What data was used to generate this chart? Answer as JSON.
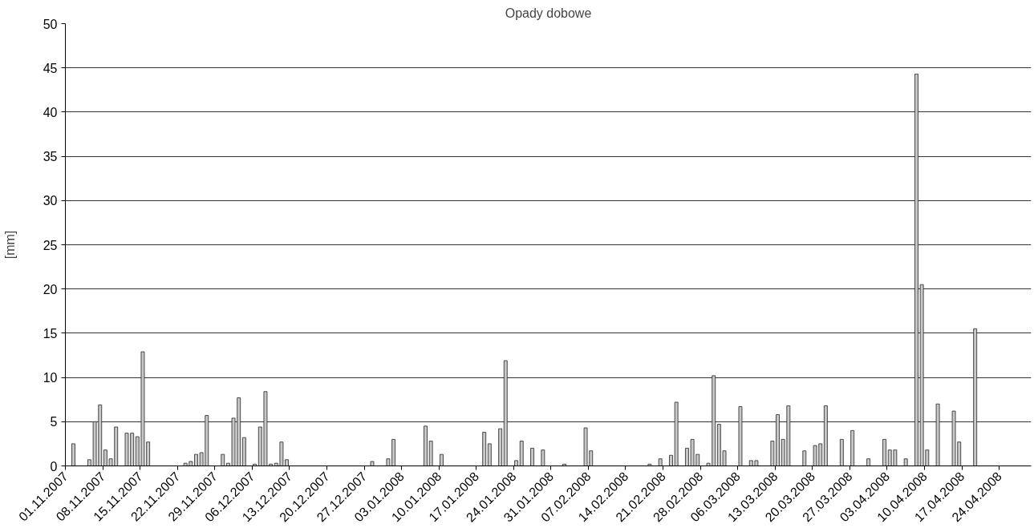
{
  "chart_data": {
    "type": "bar",
    "title": "Opady dobowe",
    "ylabel": "[mm]",
    "x": [
      "2007-11-02",
      "2007-11-05",
      "2007-11-06",
      "2007-11-07",
      "2007-11-08",
      "2007-11-09",
      "2007-11-10",
      "2007-11-12",
      "2007-11-13",
      "2007-11-14",
      "2007-11-15",
      "2007-11-16",
      "2007-11-23",
      "2007-11-24",
      "2007-11-25",
      "2007-11-26",
      "2007-11-27",
      "2007-11-30",
      "2007-12-01",
      "2007-12-02",
      "2007-12-03",
      "2007-12-04",
      "2007-12-06",
      "2007-12-07",
      "2007-12-08",
      "2007-12-09",
      "2007-12-10",
      "2007-12-11",
      "2007-12-12",
      "2007-12-28",
      "2007-12-31",
      "2008-01-01",
      "2008-01-07",
      "2008-01-08",
      "2008-01-10",
      "2008-01-18",
      "2008-01-19",
      "2008-01-21",
      "2008-01-22",
      "2008-01-24",
      "2008-01-25",
      "2008-01-27",
      "2008-01-29",
      "2008-02-02",
      "2008-02-06",
      "2008-02-07",
      "2008-02-18",
      "2008-02-20",
      "2008-02-22",
      "2008-02-23",
      "2008-02-25",
      "2008-02-26",
      "2008-02-27",
      "2008-02-29",
      "2008-03-01",
      "2008-03-02",
      "2008-03-03",
      "2008-03-06",
      "2008-03-08",
      "2008-03-09",
      "2008-03-12",
      "2008-03-13",
      "2008-03-14",
      "2008-03-15",
      "2008-03-18",
      "2008-03-20",
      "2008-03-21",
      "2008-03-22",
      "2008-03-25",
      "2008-03-27",
      "2008-03-30",
      "2008-04-02",
      "2008-04-03",
      "2008-04-04",
      "2008-04-06",
      "2008-04-08",
      "2008-04-09",
      "2008-04-10",
      "2008-04-12",
      "2008-04-15",
      "2008-04-16",
      "2008-04-19"
    ],
    "values": [
      2.5,
      0.7,
      5.0,
      6.9,
      1.8,
      0.8,
      4.4,
      3.7,
      3.7,
      3.3,
      12.9,
      2.7,
      0.3,
      0.5,
      1.3,
      1.5,
      5.7,
      1.3,
      0.3,
      5.4,
      7.7,
      3.2,
      0.2,
      4.4,
      8.4,
      0.2,
      0.3,
      2.7,
      0.7,
      0.5,
      0.8,
      3.0,
      4.5,
      2.8,
      1.3,
      3.8,
      2.5,
      4.2,
      11.9,
      0.6,
      2.8,
      2.0,
      1.8,
      0.2,
      4.3,
      1.7,
      0.2,
      0.8,
      1.2,
      7.2,
      2.0,
      3.0,
      1.3,
      0.3,
      10.2,
      4.7,
      1.7,
      6.7,
      0.6,
      0.6,
      2.8,
      5.8,
      3.0,
      6.8,
      1.7,
      2.3,
      2.5,
      6.8,
      3.0,
      4.0,
      0.8,
      3.0,
      1.8,
      1.8,
      0.8,
      44.3,
      20.5,
      1.8,
      7.0,
      6.2,
      2.7,
      15.5
    ],
    "color": "#c8c8c8",
    "xlim": [
      "2007-11-01",
      "2008-04-30"
    ],
    "xticks": [
      {
        "value": "2007-11-01",
        "label": "01.11.2007"
      },
      {
        "value": "2007-11-08",
        "label": "08.11.2007"
      },
      {
        "value": "2007-11-15",
        "label": "15.11.2007"
      },
      {
        "value": "2007-11-22",
        "label": "22.11.2007"
      },
      {
        "value": "2007-11-29",
        "label": "29.11.2007"
      },
      {
        "value": "2007-12-06",
        "label": "06.12.2007"
      },
      {
        "value": "2007-12-13",
        "label": "13.12.2007"
      },
      {
        "value": "2007-12-20",
        "label": "20.12.2007"
      },
      {
        "value": "2007-12-27",
        "label": "27.12.2007"
      },
      {
        "value": "2008-01-03",
        "label": "03.01.2008"
      },
      {
        "value": "2008-01-10",
        "label": "10.01.2008"
      },
      {
        "value": "2008-01-17",
        "label": "17.01.2008"
      },
      {
        "value": "2008-01-24",
        "label": "24.01.2008"
      },
      {
        "value": "2008-01-31",
        "label": "31.01.2008"
      },
      {
        "value": "2008-02-07",
        "label": "07.02.2008"
      },
      {
        "value": "2008-02-14",
        "label": "14.02.2008"
      },
      {
        "value": "2008-02-21",
        "label": "21.02.2008"
      },
      {
        "value": "2008-02-28",
        "label": "28.02.2008"
      },
      {
        "value": "2008-03-06",
        "label": "06.03.2008"
      },
      {
        "value": "2008-03-13",
        "label": "13.03.2008"
      },
      {
        "value": "2008-03-20",
        "label": "20.03.2008"
      },
      {
        "value": "2008-03-27",
        "label": "27.03.2008"
      },
      {
        "value": "2008-04-03",
        "label": "03.04.2008"
      },
      {
        "value": "2008-04-10",
        "label": "10.04.2008"
      },
      {
        "value": "2008-04-17",
        "label": "17.04.2008"
      },
      {
        "value": "2008-04-24",
        "label": "24.04.2008"
      }
    ],
    "ylim": [
      0,
      50
    ],
    "yticks": [
      0,
      5,
      10,
      15,
      20,
      25,
      30,
      35,
      40,
      45,
      50
    ],
    "grid": "y"
  }
}
